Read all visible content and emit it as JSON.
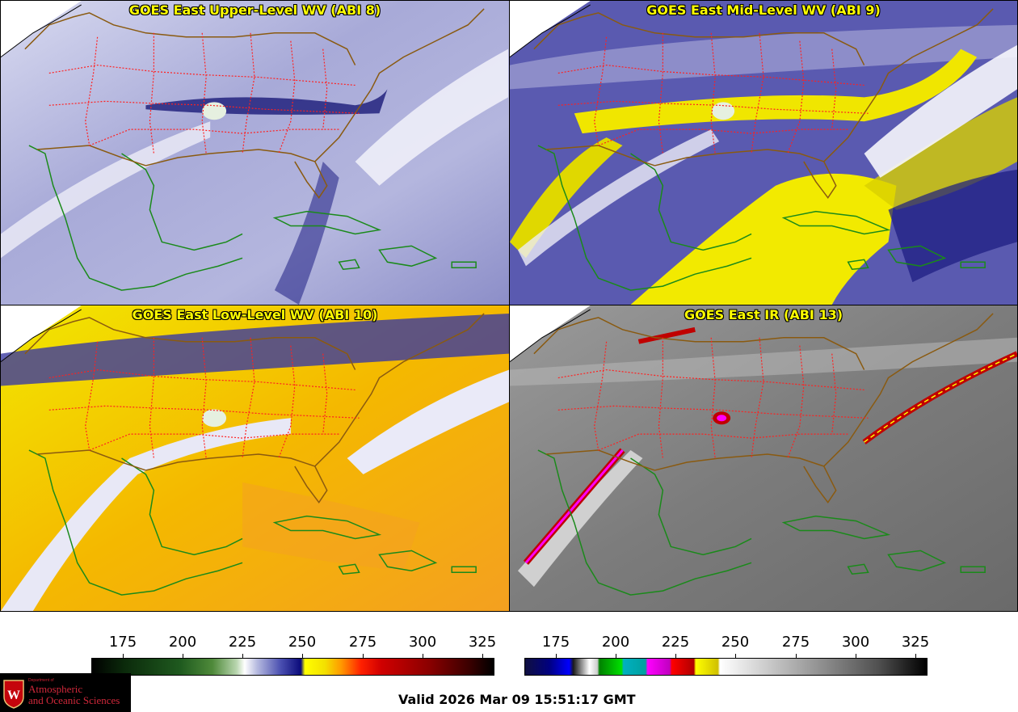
{
  "panels": {
    "upper": {
      "title": "GOES East Upper-Level WV (ABI 8)"
    },
    "mid": {
      "title": "GOES East Mid-Level WV (ABI 9)"
    },
    "low": {
      "title": "GOES East Low-Level WV (ABI 10)"
    },
    "ir": {
      "title": "GOES East IR (ABI 13)"
    }
  },
  "colorbars": {
    "wv": {
      "ticks": [
        "175",
        "200",
        "225",
        "250",
        "275",
        "300",
        "325"
      ]
    },
    "ir": {
      "ticks": [
        "175",
        "200",
        "225",
        "250",
        "275",
        "300",
        "325"
      ]
    }
  },
  "logo": {
    "dept": "Department of",
    "line1": "Atmospheric",
    "line2": "and Oceanic Sciences"
  },
  "valid_time": "Valid 2026 Mar 09 15:51:17 GMT",
  "colors": {
    "title_text": "#ffff00",
    "state_borders": "#ff2020",
    "coastline": "#1a8a1a",
    "us_border": "#8a5a10",
    "logo_red": "#d0283a"
  }
}
